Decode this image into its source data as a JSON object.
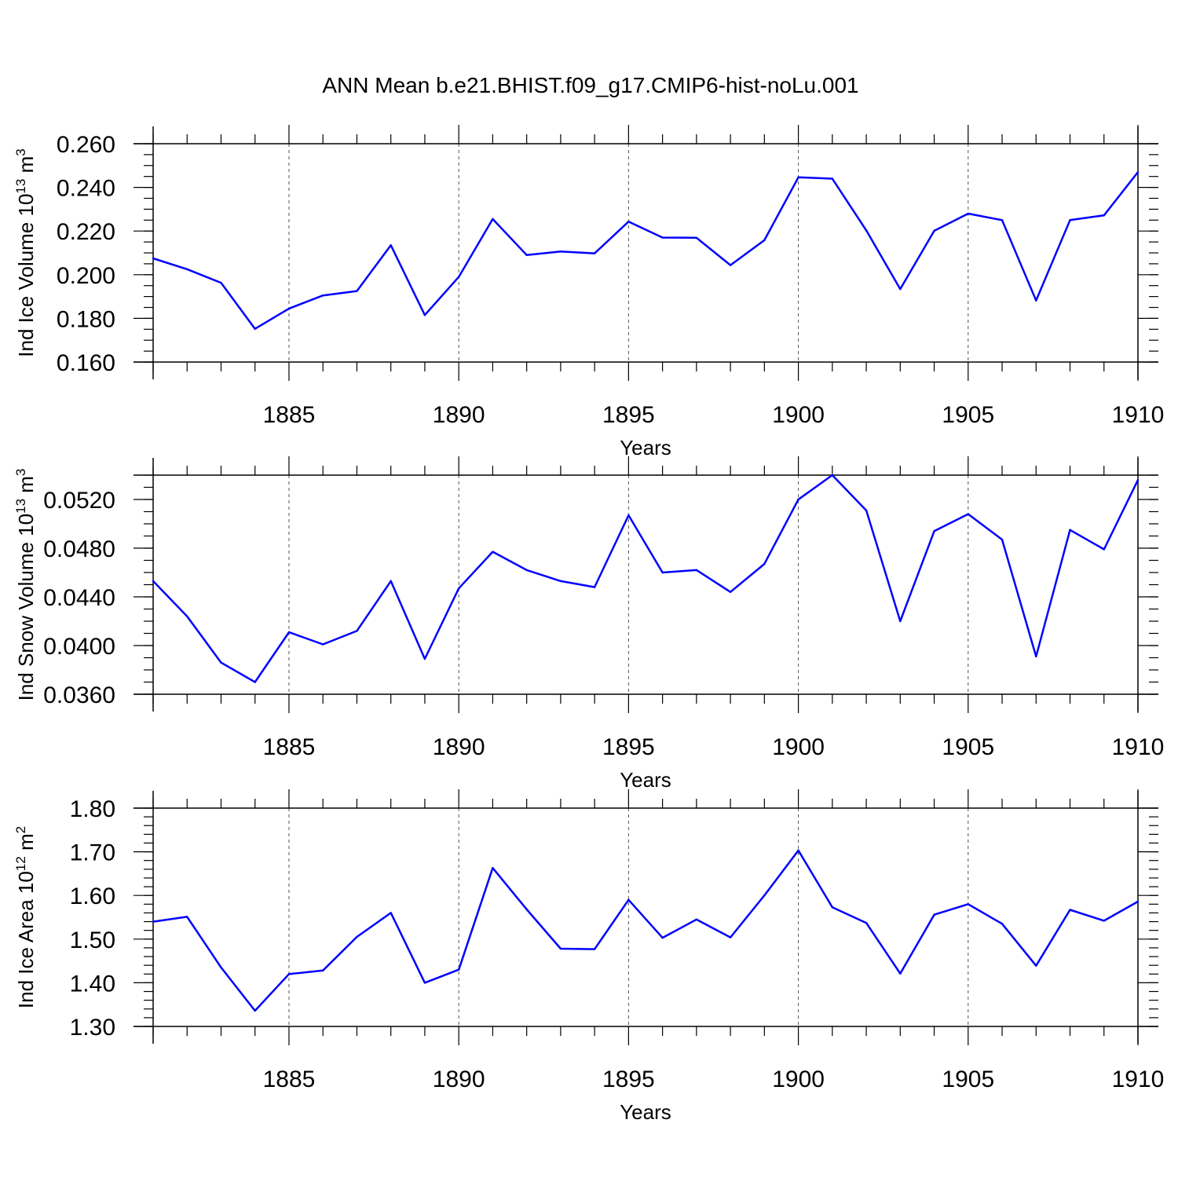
{
  "title": "ANN Mean b.e21.BHIST.f09_g17.CMIP6-hist-noLu.001",
  "line_color": "#0000ff",
  "chart_data": [
    {
      "type": "line",
      "ylabel_main": "Ind Ice Volume 10",
      "ylabel_exp": "13",
      "ylabel_unit": " m",
      "ylabel_unit_exp": "3",
      "xlabel": "Years",
      "grid": "vertical dashed at major x ticks",
      "xlim": [
        1881,
        1910
      ],
      "ylim": [
        0.16,
        0.26
      ],
      "x_ticks": [
        1885,
        1890,
        1895,
        1900,
        1905,
        1910
      ],
      "y_ticks": [
        0.16,
        0.18,
        0.2,
        0.22,
        0.24,
        0.26
      ],
      "y_tick_labels": [
        "0.160",
        "0.180",
        "0.200",
        "0.220",
        "0.240",
        "0.260"
      ],
      "y_minor_step": 0.005,
      "x": [
        1881,
        1882,
        1883,
        1884,
        1885,
        1886,
        1887,
        1888,
        1889,
        1890,
        1891,
        1892,
        1893,
        1894,
        1895,
        1896,
        1897,
        1898,
        1899,
        1900,
        1901,
        1902,
        1903,
        1904,
        1905,
        1906,
        1907,
        1908,
        1909,
        1910
      ],
      "y": [
        0.2075,
        0.2025,
        0.1963,
        0.1752,
        0.1845,
        0.1905,
        0.1925,
        0.2135,
        0.1815,
        0.199,
        0.2255,
        0.209,
        0.2106,
        0.2098,
        0.2243,
        0.217,
        0.2169,
        0.2044,
        0.2158,
        0.2446,
        0.244,
        0.2203,
        0.1934,
        0.2201,
        0.228,
        0.225,
        0.1882,
        0.225,
        0.2272,
        0.247
      ]
    },
    {
      "type": "line",
      "ylabel_main": "Ind Snow Volume 10",
      "ylabel_exp": "13",
      "ylabel_unit": " m",
      "ylabel_unit_exp": "3",
      "xlabel": "Years",
      "grid": "vertical dashed at major x ticks",
      "xlim": [
        1881,
        1910
      ],
      "ylim": [
        0.036,
        0.054
      ],
      "x_ticks": [
        1885,
        1890,
        1895,
        1900,
        1905,
        1910
      ],
      "y_ticks": [
        0.036,
        0.04,
        0.044,
        0.048,
        0.052
      ],
      "y_tick_labels": [
        "0.0360",
        "0.0400",
        "0.0440",
        "0.0480",
        "0.0520"
      ],
      "y_minor_step": 0.001,
      "x": [
        1881,
        1882,
        1883,
        1884,
        1885,
        1886,
        1887,
        1888,
        1889,
        1890,
        1891,
        1892,
        1893,
        1894,
        1895,
        1896,
        1897,
        1898,
        1899,
        1900,
        1901,
        1902,
        1903,
        1904,
        1905,
        1906,
        1907,
        1908,
        1909,
        1910
      ],
      "y": [
        0.0453,
        0.0424,
        0.0386,
        0.037,
        0.0411,
        0.0401,
        0.0412,
        0.0453,
        0.0389,
        0.0447,
        0.0477,
        0.0462,
        0.0453,
        0.0448,
        0.0507,
        0.046,
        0.0462,
        0.0444,
        0.0467,
        0.052,
        0.054,
        0.0511,
        0.042,
        0.0494,
        0.0508,
        0.0487,
        0.0391,
        0.0495,
        0.0479,
        0.0536
      ]
    },
    {
      "type": "line",
      "ylabel_main": "Ind Ice Area 10",
      "ylabel_exp": "12",
      "ylabel_unit": " m",
      "ylabel_unit_exp": "2",
      "xlabel": "Years",
      "grid": "vertical dashed at major x ticks",
      "xlim": [
        1881,
        1910
      ],
      "ylim": [
        1.3,
        1.8
      ],
      "x_ticks": [
        1885,
        1890,
        1895,
        1900,
        1905,
        1910
      ],
      "y_ticks": [
        1.3,
        1.4,
        1.5,
        1.6,
        1.7,
        1.8
      ],
      "y_tick_labels": [
        "1.30",
        "1.40",
        "1.50",
        "1.60",
        "1.70",
        "1.80"
      ],
      "y_minor_step": 0.02,
      "x": [
        1881,
        1882,
        1883,
        1884,
        1885,
        1886,
        1887,
        1888,
        1889,
        1890,
        1891,
        1892,
        1893,
        1894,
        1895,
        1896,
        1897,
        1898,
        1899,
        1900,
        1901,
        1902,
        1903,
        1904,
        1905,
        1906,
        1907,
        1908,
        1909,
        1910
      ],
      "y": [
        1.54,
        1.551,
        1.435,
        1.336,
        1.42,
        1.428,
        1.505,
        1.56,
        1.4,
        1.43,
        1.663,
        1.568,
        1.478,
        1.477,
        1.59,
        1.503,
        1.545,
        1.504,
        1.6,
        1.703,
        1.573,
        1.537,
        1.421,
        1.556,
        1.58,
        1.535,
        1.439,
        1.567,
        1.542,
        1.586
      ]
    }
  ]
}
